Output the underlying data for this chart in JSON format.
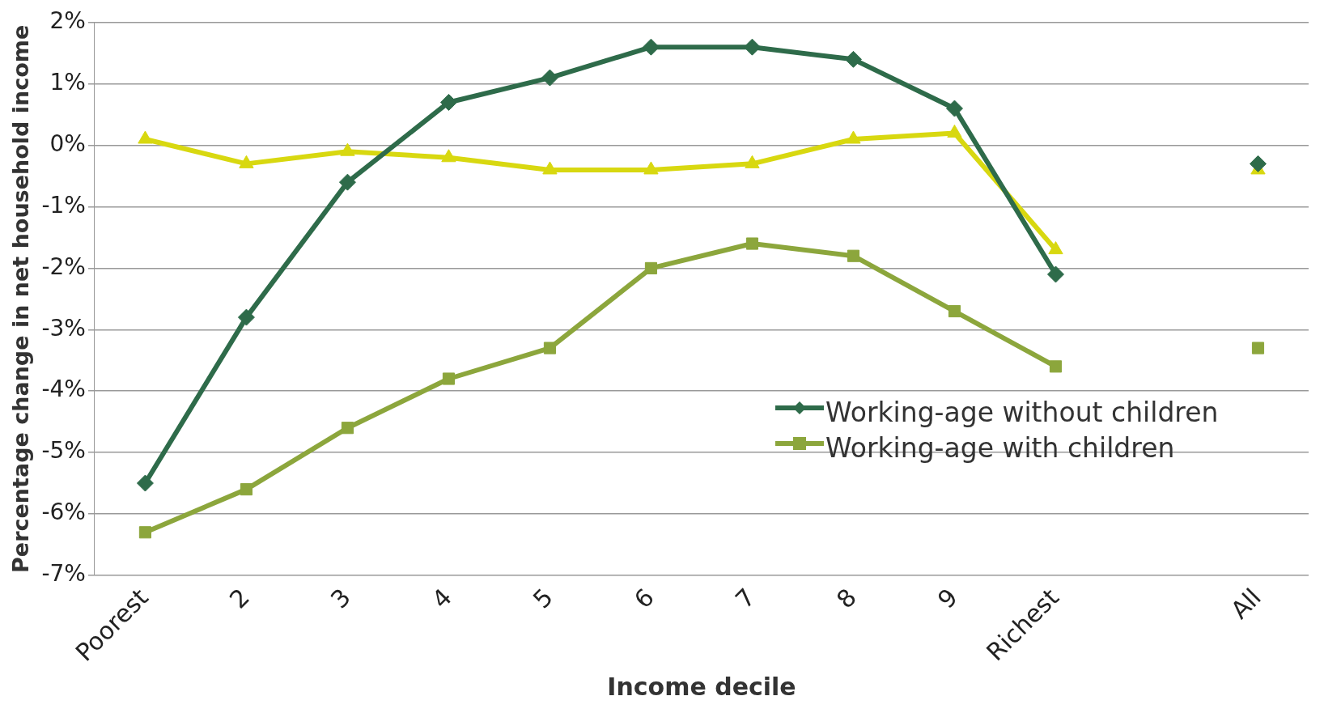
{
  "chart_data": {
    "type": "line",
    "xlabel": "Income decile",
    "ylabel": "Percentage change in net household income",
    "categories": [
      "Poorest",
      "2",
      "3",
      "4",
      "5",
      "6",
      "7",
      "8",
      "9",
      "Richest",
      null,
      "All"
    ],
    "series": [
      {
        "name": "Working-age without children",
        "color": "#2e6b4a",
        "marker": "diamond",
        "values": [
          -5.5,
          -2.8,
          -0.6,
          0.7,
          1.1,
          1.6,
          1.6,
          1.4,
          0.6,
          -2.1,
          null,
          -0.3
        ]
      },
      {
        "name": "Working-age with children",
        "color": "#8ca63c",
        "marker": "square",
        "values": [
          -6.3,
          -5.6,
          -4.6,
          -3.8,
          -3.3,
          -2.0,
          -1.6,
          -1.8,
          -2.7,
          -3.6,
          null,
          -3.3
        ]
      },
      {
        "color": "#d8d810",
        "marker": "triangle",
        "values": [
          0.1,
          -0.3,
          -0.1,
          -0.2,
          -0.4,
          -0.4,
          -0.3,
          0.1,
          0.2,
          -1.7,
          null,
          -0.4
        ]
      }
    ],
    "ylim": [
      -7,
      2
    ],
    "yticks": [
      {
        "value": -7,
        "label": "-7%"
      },
      {
        "value": -6,
        "label": "-6%"
      },
      {
        "value": -5,
        "label": "-5%"
      },
      {
        "value": -4,
        "label": "-4%"
      },
      {
        "value": -3,
        "label": "-3%"
      },
      {
        "value": -2,
        "label": "-2%"
      },
      {
        "value": -1,
        "label": "-1%"
      },
      {
        "value": 0,
        "label": "0%"
      },
      {
        "value": 1,
        "label": "1%"
      },
      {
        "value": 2,
        "label": "2%"
      }
    ],
    "grid": "y",
    "legend": "right",
    "line_style": "solid"
  }
}
